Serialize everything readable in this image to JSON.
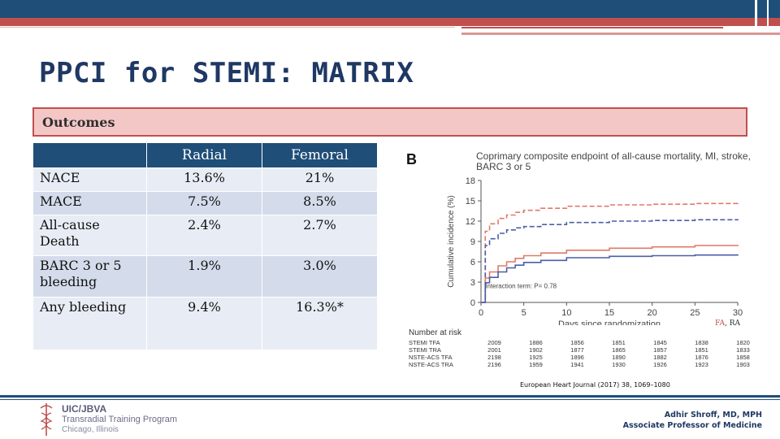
{
  "title": "PPCI for STEMI: MATRIX",
  "section_label": "Outcomes",
  "table": {
    "headers": [
      "",
      "Radial",
      "Femoral"
    ],
    "rows": [
      {
        "label": "NACE",
        "radial": "13.6%",
        "femoral": "21%"
      },
      {
        "label": "MACE",
        "radial": "7.5%",
        "femoral": "8.5%"
      },
      {
        "label": "All-cause Death",
        "radial": "2.4%",
        "femoral": "2.7%"
      },
      {
        "label": "BARC 3 or 5 bleeding",
        "radial": "1.9%",
        "femoral": "3.0%"
      },
      {
        "label": "Any bleeding",
        "radial": "9.4%",
        "femoral": "16.3%*"
      }
    ]
  },
  "figure": {
    "letter": "B",
    "title": "Coprimary composite endpoint of all-cause mortality, MI, stroke, BARC 3 or 5",
    "legend_fa": "FA",
    "legend_sep": ", ",
    "legend_ra": "RA",
    "risk_title": "Number at risk"
  },
  "chart_data": {
    "type": "line",
    "xlabel": "Days since randomization",
    "ylabel": "Cumulative incidence (%)",
    "xlim": [
      0,
      30
    ],
    "ylim": [
      0,
      18
    ],
    "xticks": [
      0,
      5,
      10,
      15,
      20,
      25,
      30
    ],
    "yticks": [
      0,
      3,
      6,
      9,
      12,
      15,
      18
    ],
    "annotation": "Interaction term: P= 0.78",
    "grid": false,
    "series": [
      {
        "name": "STEMI TFA",
        "color": "#e07a6a",
        "dash": true,
        "x": [
          0,
          0.5,
          1,
          2,
          3,
          4,
          5,
          7,
          10,
          15,
          20,
          25,
          30
        ],
        "y": [
          0,
          10.5,
          11.6,
          12.4,
          12.9,
          13.3,
          13.6,
          13.9,
          14.2,
          14.4,
          14.5,
          14.6,
          14.7
        ]
      },
      {
        "name": "STEMI TRA",
        "color": "#4a5fa6",
        "dash": true,
        "x": [
          0,
          0.5,
          1,
          2,
          3,
          4,
          5,
          7,
          10,
          15,
          20,
          25,
          30
        ],
        "y": [
          0,
          8.4,
          9.4,
          10.2,
          10.7,
          11.0,
          11.2,
          11.5,
          11.8,
          12.0,
          12.1,
          12.2,
          12.3
        ]
      },
      {
        "name": "NSTE-ACS TFA",
        "color": "#e07a6a",
        "dash": false,
        "x": [
          0,
          0.5,
          1,
          2,
          3,
          4,
          5,
          7,
          10,
          15,
          20,
          25,
          30
        ],
        "y": [
          0,
          3.6,
          4.5,
          5.4,
          6.0,
          6.5,
          6.9,
          7.3,
          7.7,
          8.0,
          8.2,
          8.4,
          8.5
        ]
      },
      {
        "name": "NSTE-ACS TRA",
        "color": "#4a5fa6",
        "dash": false,
        "x": [
          0,
          0.5,
          1,
          2,
          3,
          4,
          5,
          7,
          10,
          15,
          20,
          25,
          30
        ],
        "y": [
          0,
          2.9,
          3.7,
          4.5,
          5.1,
          5.5,
          5.9,
          6.2,
          6.6,
          6.8,
          6.9,
          7.0,
          7.1
        ]
      }
    ]
  },
  "risk_table": {
    "days": [
      "0",
      "5",
      "10",
      "15",
      "20",
      "25",
      "30"
    ],
    "rows": [
      {
        "label": "STEMI TFA",
        "values": [
          "2009",
          "1886",
          "1856",
          "1851",
          "1845",
          "1838",
          "1820"
        ]
      },
      {
        "label": "STEMI TRA",
        "values": [
          "2001",
          "1902",
          "1877",
          "1865",
          "1857",
          "1851",
          "1833"
        ]
      },
      {
        "label": "NSTE-ACS TFA",
        "values": [
          "2198",
          "1925",
          "1896",
          "1890",
          "1882",
          "1876",
          "1858"
        ]
      },
      {
        "label": "NSTE-ACS TRA",
        "values": [
          "2196",
          "1959",
          "1941",
          "1930",
          "1926",
          "1923",
          "1903"
        ]
      }
    ]
  },
  "citation": "European Heart Journal (2017) 38, 1069–1080",
  "footer": {
    "logo_line1": "UIC/JBVA",
    "logo_line2": "Transradial Training Program",
    "logo_line3": "Chicago, Illinois",
    "author_name": "Adhir Shroff, MD, MPH",
    "author_title": "Associate Professor of Medicine"
  },
  "colors": {
    "navy": "#1f4e79",
    "red": "#c0504d",
    "pink_fill": "#f4c7c7",
    "femoral_line": "#e07a6a",
    "radial_line": "#4a5fa6"
  }
}
